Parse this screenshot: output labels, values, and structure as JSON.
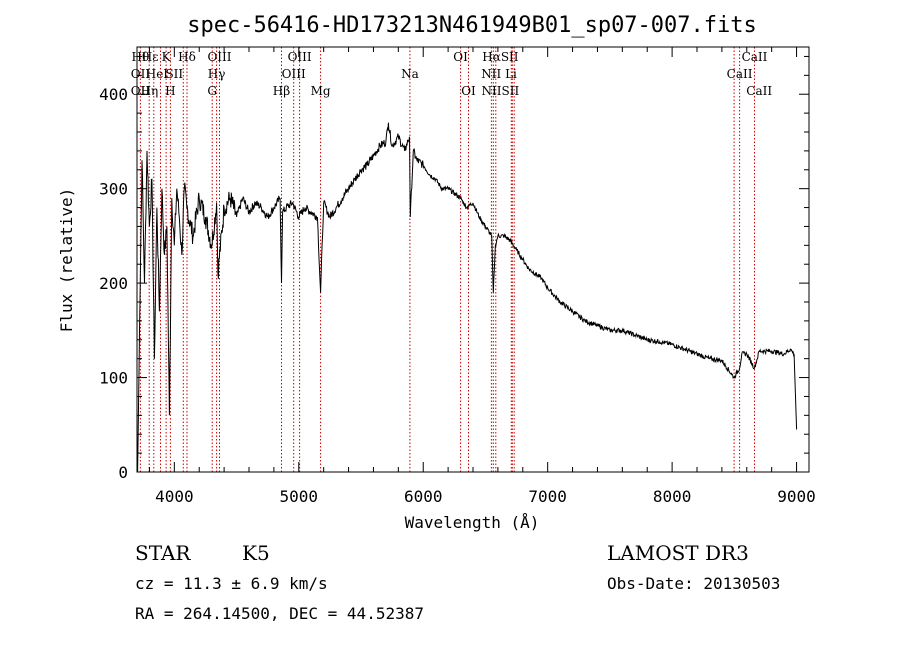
{
  "chart_data": {
    "type": "line",
    "title": "spec-56416-HD173213N461949B01_sp07-007.fits",
    "xlabel": "Wavelength (Å)",
    "ylabel": "Flux (relative)",
    "xlim": [
      3700,
      9100
    ],
    "ylim": [
      0,
      450
    ],
    "xticks": [
      4000,
      5000,
      6000,
      7000,
      8000,
      9000
    ],
    "yticks": [
      0,
      100,
      200,
      300,
      400
    ],
    "series": [
      {
        "name": "flux",
        "x": [
          3705,
          3720,
          3740,
          3760,
          3780,
          3800,
          3820,
          3840,
          3860,
          3880,
          3900,
          3920,
          3940,
          3960,
          3980,
          4000,
          4020,
          4040,
          4060,
          4080,
          4100,
          4150,
          4200,
          4250,
          4300,
          4340,
          4350,
          4400,
          4450,
          4500,
          4550,
          4600,
          4650,
          4700,
          4750,
          4800,
          4850,
          4861,
          4870,
          4900,
          4950,
          5000,
          5050,
          5100,
          5150,
          5175,
          5200,
          5250,
          5300,
          5350,
          5400,
          5450,
          5500,
          5550,
          5600,
          5650,
          5700,
          5720,
          5750,
          5800,
          5850,
          5890,
          5896,
          5920,
          5950,
          6000,
          6050,
          6100,
          6150,
          6200,
          6250,
          6300,
          6350,
          6400,
          6450,
          6500,
          6550,
          6563,
          6580,
          6600,
          6650,
          6700,
          6750,
          6800,
          6850,
          6900,
          6950,
          7000,
          7100,
          7200,
          7300,
          7400,
          7500,
          7600,
          7700,
          7800,
          7900,
          8000,
          8100,
          8200,
          8300,
          8400,
          8498,
          8542,
          8560,
          8600,
          8662,
          8700,
          8800,
          8900,
          8950,
          8980,
          9000
        ],
        "values": [
          0,
          150,
          330,
          200,
          340,
          260,
          310,
          120,
          280,
          170,
          300,
          230,
          260,
          60,
          290,
          240,
          300,
          270,
          230,
          300,
          280,
          250,
          290,
          270,
          240,
          285,
          210,
          280,
          290,
          270,
          290,
          275,
          285,
          280,
          270,
          280,
          290,
          200,
          275,
          280,
          285,
          270,
          280,
          275,
          270,
          190,
          285,
          270,
          280,
          290,
          300,
          310,
          320,
          325,
          335,
          345,
          350,
          370,
          345,
          355,
          340,
          355,
          270,
          340,
          330,
          325,
          315,
          310,
          300,
          300,
          295,
          290,
          280,
          285,
          270,
          260,
          250,
          190,
          240,
          250,
          250,
          245,
          235,
          225,
          215,
          210,
          205,
          195,
          180,
          170,
          160,
          155,
          150,
          150,
          145,
          140,
          138,
          135,
          130,
          125,
          120,
          118,
          100,
          110,
          125,
          125,
          110,
          128,
          128,
          125,
          130,
          125,
          45
        ]
      }
    ],
    "lines": [
      {
        "name": "OII",
        "x": 3727
      },
      {
        "name": "Hθ",
        "x": 3798
      },
      {
        "name": "Hη",
        "x": 3835
      },
      {
        "name": "Hε",
        "x": 3889
      },
      {
        "name": "HeI",
        "x": 3889
      },
      {
        "name": "K",
        "x": 3934
      },
      {
        "name": "H",
        "x": 3968
      },
      {
        "name": "SII",
        "x": 4072
      },
      {
        "name": "Hδ",
        "x": 4102
      },
      {
        "name": "Hγ",
        "x": 4340
      },
      {
        "name": "G",
        "x": 4304
      },
      {
        "name": "OIII",
        "x": 4363
      },
      {
        "name": "Hβ",
        "x": 4861
      },
      {
        "name": "OIII",
        "x": 4959
      },
      {
        "name": "OIII",
        "x": 5007
      },
      {
        "name": "Mg",
        "x": 5175
      },
      {
        "name": "Na",
        "x": 5893
      },
      {
        "name": "OI",
        "x": 6300
      },
      {
        "name": "OI",
        "x": 6364
      },
      {
        "name": "NII",
        "x": 6548
      },
      {
        "name": "Hα",
        "x": 6563
      },
      {
        "name": "NII",
        "x": 6583
      },
      {
        "name": "Li",
        "x": 6708
      },
      {
        "name": "SII",
        "x": 6716
      },
      {
        "name": "SII",
        "x": 6731
      },
      {
        "name": "CaII",
        "x": 8498
      },
      {
        "name": "CaII",
        "x": 8542
      },
      {
        "name": "CaII",
        "x": 8662
      }
    ],
    "line_labels": [
      {
        "text": "OII",
        "row": 3,
        "x": 3727
      },
      {
        "text": "OII",
        "row": 2,
        "x": 3727
      },
      {
        "text": "Hθ",
        "row": 1,
        "x": 3727
      },
      {
        "text": "Hε",
        "row": 1,
        "x": 3805
      },
      {
        "text": "Hη",
        "row": 3,
        "x": 3800
      },
      {
        "text": "HeI",
        "row": 2,
        "x": 3860
      },
      {
        "text": "K",
        "row": 1,
        "x": 3934
      },
      {
        "text": "H",
        "row": 3,
        "x": 3968
      },
      {
        "text": "SII",
        "row": 2,
        "x": 4000
      },
      {
        "text": "Hδ",
        "row": 1,
        "x": 4102
      },
      {
        "text": "OIII",
        "row": 1,
        "x": 4363
      },
      {
        "text": "Hγ",
        "row": 2,
        "x": 4340
      },
      {
        "text": "G",
        "row": 3,
        "x": 4304
      },
      {
        "text": "Hβ",
        "row": 3,
        "x": 4861
      },
      {
        "text": "OIII",
        "row": 1,
        "x": 5007
      },
      {
        "text": "OIII",
        "row": 2,
        "x": 4959
      },
      {
        "text": "Mg",
        "row": 3,
        "x": 5175
      },
      {
        "text": "Na",
        "row": 2,
        "x": 5893
      },
      {
        "text": "OI",
        "row": 1,
        "x": 6300
      },
      {
        "text": "OI",
        "row": 3,
        "x": 6364
      },
      {
        "text": "HαSII",
        "row": 1,
        "x": 6620
      },
      {
        "text": "NII Li",
        "row": 2,
        "x": 6610
      },
      {
        "text": "NIISII",
        "row": 3,
        "x": 6620
      },
      {
        "text": "CaII",
        "row": 1,
        "x": 8662
      },
      {
        "text": "CaII",
        "row": 2,
        "x": 8542
      },
      {
        "text": "CaII",
        "row": 3,
        "x": 8700
      }
    ]
  },
  "info": {
    "class_label": "STAR",
    "subclass_label": "K5",
    "survey": "LAMOST DR3",
    "cz": "cz = 11.3 ± 6.9 km/s",
    "obs_date": "Obs-Date: 20130503",
    "radec": "RA = 264.14500, DEC =  44.52387"
  },
  "colors": {
    "line_marker": "#cc0000",
    "spectrum": "#000000"
  }
}
